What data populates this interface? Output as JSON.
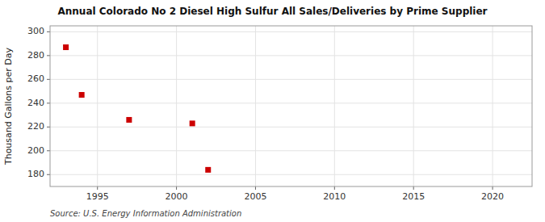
{
  "chart_data": {
    "type": "scatter",
    "title": "Annual Colorado No 2 Diesel High Sulfur All Sales/Deliveries by Prime Supplier",
    "ylabel": "Thousand Gallons per Day",
    "annotations": [
      "Source: U.S. Energy Information Administration"
    ],
    "x": [
      1993,
      1994,
      1997,
      2001,
      2002
    ],
    "values": [
      287,
      247,
      226,
      223,
      184
    ],
    "color": "#cc0000",
    "marker": "square",
    "xlim": [
      1992,
      2022.5
    ],
    "ylim": [
      170,
      305
    ],
    "xticks": [
      1995,
      2000,
      2005,
      2010,
      2015,
      2020
    ],
    "yticks": [
      180,
      200,
      220,
      240,
      260,
      280,
      300
    ],
    "grid": true
  }
}
